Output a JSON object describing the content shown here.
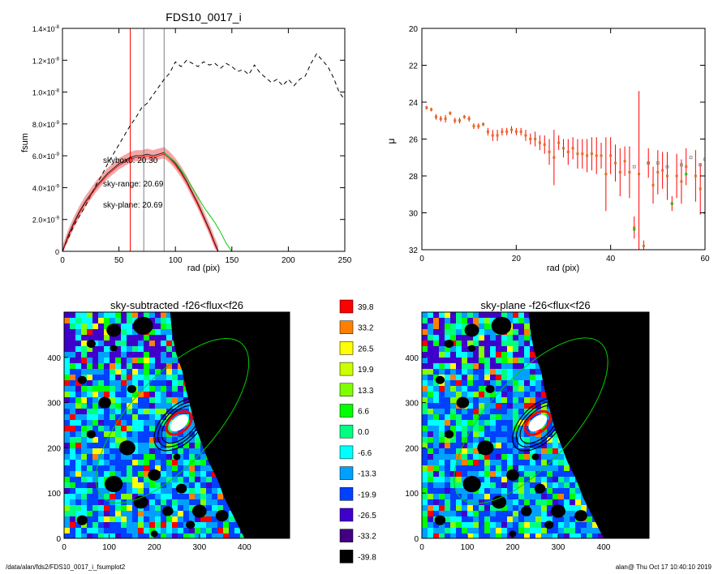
{
  "footer": {
    "path": "/data/alan/fds2/FDS10_0017_i_fsumplot2",
    "stamp": "alan@  Thu Oct 17 10:40:10 2019"
  },
  "colors": {
    "red": "#ff0000",
    "green": "#00cc00",
    "orange": "#ff8000",
    "gray": "#808080"
  },
  "chart_data": [
    {
      "type": "line",
      "title": "FDS10_0017_i",
      "xlabel": "rad (pix)",
      "ylabel": "fsum",
      "xlim": [
        0,
        250
      ],
      "ylim": [
        0,
        1.4e-08
      ],
      "xticks": [
        "0",
        "50",
        "100",
        "150",
        "200",
        "250"
      ],
      "yticks": [
        {
          "mant": "0",
          "exp": ""
        },
        {
          "mant": "2.0×10",
          "exp": "-9"
        },
        {
          "mant": "4.0×10",
          "exp": "-9"
        },
        {
          "mant": "6.0×10",
          "exp": "-9"
        },
        {
          "mant": "8.0×10",
          "exp": "-9"
        },
        {
          "mant": "1.0×10",
          "exp": "-8"
        },
        {
          "mant": "1.2×10",
          "exp": "-8"
        },
        {
          "mant": "1.4×10",
          "exp": "-8"
        }
      ],
      "annotations": [
        {
          "text": "skybox0: 20.30",
          "color": "#000000"
        },
        {
          "text": "sky-range: 20.69",
          "color": "#ff0000"
        },
        {
          "text": "sky-plane: 20.69",
          "color": "#00cc00"
        }
      ],
      "vlines": [
        {
          "x": 60,
          "color": "#ff0000"
        },
        {
          "x": 72,
          "color": "#808080"
        },
        {
          "x": 90,
          "color": "#808080"
        }
      ],
      "series": [
        {
          "style": "dashed",
          "x": [
            0,
            5,
            10,
            15,
            20,
            25,
            30,
            35,
            40,
            45,
            50,
            55,
            60,
            65,
            70,
            75,
            80,
            85,
            90,
            95,
            100,
            105,
            110,
            115,
            120,
            125,
            130,
            135,
            140,
            145,
            150,
            155,
            160,
            165,
            170,
            175,
            180,
            185,
            190,
            195,
            200,
            205,
            210,
            215,
            220,
            225,
            230,
            235,
            240,
            245,
            250
          ],
          "y": [
            0,
            8e-10,
            1.6e-09,
            2.2e-09,
            2.8e-09,
            3.5e-09,
            4.2e-09,
            4.8e-09,
            5.5e-09,
            6.1e-09,
            6.7e-09,
            7.3e-09,
            7.9e-09,
            8.4e-09,
            9e-09,
            9.3e-09,
            9.8e-09,
            1.03e-08,
            1.08e-08,
            1.12e-08,
            1.19e-08,
            1.16e-08,
            1.2e-08,
            1.18e-08,
            1.16e-08,
            1.19e-08,
            1.17e-08,
            1.18e-08,
            1.15e-08,
            1.18e-08,
            1.16e-08,
            1.13e-08,
            1.14e-08,
            1.11e-08,
            1.17e-08,
            1.12e-08,
            1.09e-08,
            1.06e-08,
            1.08e-08,
            1.04e-08,
            1.08e-08,
            1.04e-08,
            1.08e-08,
            1.1e-08,
            1.18e-08,
            1.24e-08,
            1.2e-08,
            1.16e-08,
            1.09e-08,
            1e-08,
            9.5e-09
          ]
        },
        {
          "name": "sky-range",
          "style": "solid",
          "band": 3.5e-10,
          "x": [
            0,
            5,
            10,
            15,
            20,
            25,
            30,
            35,
            40,
            45,
            50,
            55,
            60,
            65,
            70,
            75,
            80,
            85,
            90,
            95,
            100,
            105,
            110,
            115,
            120,
            125,
            130,
            135,
            138
          ],
          "y": [
            0,
            1e-09,
            1.8e-09,
            2.5e-09,
            3.1e-09,
            3.6e-09,
            4.1e-09,
            4.5e-09,
            4.9e-09,
            5.2e-09,
            5.5e-09,
            5.7e-09,
            5.9e-09,
            6e-09,
            6e-09,
            6.1e-09,
            6e-09,
            6.1e-09,
            6.2e-09,
            5.9e-09,
            5.5e-09,
            5e-09,
            4.4e-09,
            3.7e-09,
            3e-09,
            2.2e-09,
            1.4e-09,
            5e-10,
            0
          ]
        },
        {
          "name": "sky-plane",
          "style": "solid",
          "x": [
            90,
            95,
            100,
            105,
            110,
            115,
            120,
            125,
            130,
            135,
            140,
            145,
            150
          ],
          "y": [
            6.2e-09,
            5.9e-09,
            5.6e-09,
            5.1e-09,
            4.6e-09,
            4e-09,
            3.4e-09,
            2.8e-09,
            2.3e-09,
            1.8e-09,
            1.2e-09,
            5e-10,
            0
          ]
        }
      ]
    },
    {
      "type": "scatter",
      "xlabel": "rad (pix)",
      "ylabel": "μ",
      "xlim": [
        0,
        60
      ],
      "ylim": [
        32,
        20
      ],
      "xticks": [
        "0",
        "20",
        "40",
        "60"
      ],
      "yticks": [
        "20",
        "22",
        "24",
        "26",
        "28",
        "30",
        "32"
      ],
      "points": [
        [
          1,
          24.3,
          0.1
        ],
        [
          2,
          24.4,
          0.1
        ],
        [
          3,
          24.8,
          0.15
        ],
        [
          4,
          24.9,
          0.15
        ],
        [
          5,
          24.9,
          0.2
        ],
        [
          6,
          24.6,
          0.1
        ],
        [
          7,
          25.0,
          0.15
        ],
        [
          8,
          25.0,
          0.15
        ],
        [
          9,
          24.8,
          0.1
        ],
        [
          10,
          24.9,
          0.15
        ],
        [
          11,
          25.3,
          0.15
        ],
        [
          12,
          25.3,
          0.15
        ],
        [
          13,
          25.2,
          0.1
        ],
        [
          14,
          25.6,
          0.2
        ],
        [
          15,
          25.8,
          0.3
        ],
        [
          16,
          25.8,
          0.3
        ],
        [
          17,
          25.6,
          0.2
        ],
        [
          18,
          25.6,
          0.2
        ],
        [
          19,
          25.5,
          0.2
        ],
        [
          20,
          25.6,
          0.2
        ],
        [
          21,
          25.6,
          0.2
        ],
        [
          22,
          25.8,
          0.3
        ],
        [
          23,
          26.0,
          0.3
        ],
        [
          24,
          26.0,
          0.4
        ],
        [
          25,
          26.2,
          0.4
        ],
        [
          26,
          26.3,
          0.5
        ],
        [
          27,
          26.7,
          0.7
        ],
        [
          28,
          27.0,
          1.5
        ],
        [
          29,
          26.2,
          0.4
        ],
        [
          30,
          26.5,
          0.5
        ],
        [
          31,
          26.7,
          0.7
        ],
        [
          32,
          26.5,
          0.6
        ],
        [
          33,
          26.8,
          0.8
        ],
        [
          34,
          26.8,
          0.8
        ],
        [
          35,
          26.9,
          0.9
        ],
        [
          36,
          26.8,
          0.9
        ],
        [
          37,
          26.9,
          1.0
        ],
        [
          38,
          26.9,
          0.7
        ],
        [
          39,
          27.9,
          2.0
        ],
        [
          40,
          26.9,
          1.0
        ],
        [
          41,
          27.3,
          1.0
        ],
        [
          42,
          27.8,
          1.3
        ],
        [
          43,
          27.2,
          0.8
        ],
        [
          44,
          27.8,
          1.4
        ],
        [
          45,
          30.8,
          0.6
        ],
        [
          46,
          27.9,
          4.5
        ],
        [
          47,
          31.8,
          0.3
        ],
        [
          48,
          27.3,
          0.8
        ],
        [
          49,
          28.5,
          1.0
        ],
        [
          50,
          27.8,
          1.2
        ],
        [
          51,
          27.7,
          1.0
        ],
        [
          52,
          28.0,
          1.3
        ],
        [
          53,
          29.5,
          0.4
        ],
        [
          54,
          28.0,
          1.2
        ],
        [
          55,
          28.3,
          1.2
        ],
        [
          56,
          27.5,
          1.0
        ],
        [
          58,
          28.0,
          1.4
        ],
        [
          59,
          28.7,
          1.4
        ],
        [
          60,
          30.0,
          1.2
        ]
      ],
      "gray_points": [
        [
          45,
          27.5
        ],
        [
          48,
          27.3
        ],
        [
          50,
          27.3
        ],
        [
          52,
          27.5
        ],
        [
          55,
          27.4
        ],
        [
          57,
          27.0
        ],
        [
          59,
          27.4
        ],
        [
          60,
          27.1
        ]
      ],
      "green_points": [
        [
          45,
          30.9
        ],
        [
          53,
          29.5
        ],
        [
          56,
          27.9
        ]
      ]
    },
    {
      "type": "heatmap",
      "title": "sky-subtracted -f26<flux<f26",
      "xlim": [
        0,
        500
      ],
      "ylim": [
        0,
        500
      ],
      "xticks": [
        "0",
        "100",
        "200",
        "300",
        "400"
      ],
      "yticks": [
        "0",
        "100",
        "200",
        "300",
        "400"
      ]
    },
    {
      "type": "heatmap",
      "title": "sky-plane -f26<flux<f26",
      "xlim": [
        0,
        500
      ],
      "ylim": [
        0,
        500
      ],
      "xticks": [
        "0",
        "100",
        "200",
        "300",
        "400"
      ],
      "yticks": [
        "0",
        "100",
        "200",
        "300",
        "400"
      ]
    }
  ],
  "colorbar": {
    "levels": [
      {
        "label": "39.8",
        "color": "#ff0000"
      },
      {
        "label": "33.2",
        "color": "#ff8000"
      },
      {
        "label": "26.5",
        "color": "#ffff00"
      },
      {
        "label": "19.9",
        "color": "#ccff00"
      },
      {
        "label": "13.3",
        "color": "#80ff00"
      },
      {
        "label": "6.6",
        "color": "#00ff00"
      },
      {
        "label": "0.0",
        "color": "#00ff80"
      },
      {
        "label": "-6.6",
        "color": "#00ffff"
      },
      {
        "label": "-13.3",
        "color": "#00a0ff"
      },
      {
        "label": "-19.9",
        "color": "#0040ff"
      },
      {
        "label": "-26.5",
        "color": "#4000cc"
      },
      {
        "label": "-33.2",
        "color": "#400080"
      },
      {
        "label": "-39.8",
        "color": "#000000"
      }
    ]
  }
}
